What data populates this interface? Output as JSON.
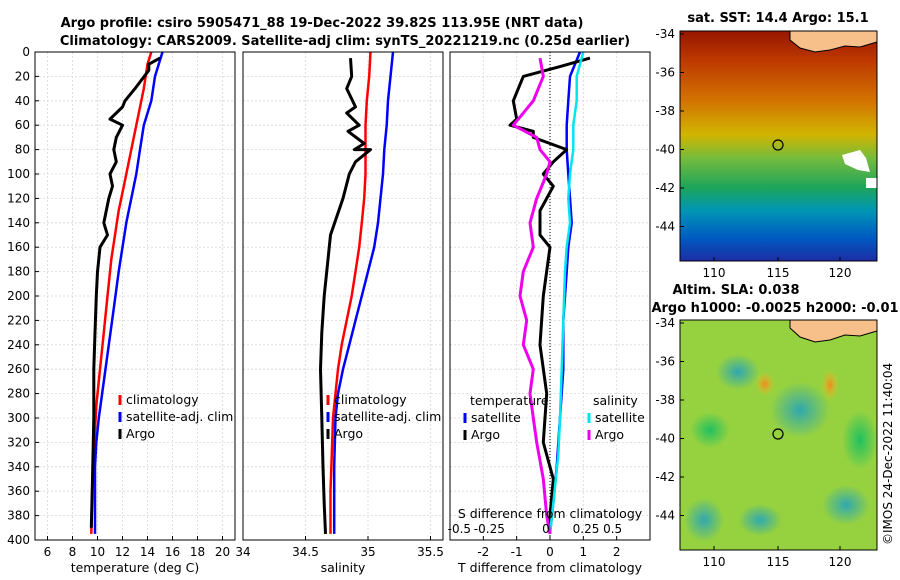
{
  "title_line1": "Argo profile: csiro 5905471_88 19-Dec-2022 39.82S 113.95E (NRT data)",
  "title_line2": "Climatology: CARS2009. Satellite-adj clim: synTS_20221219.nc (0.25d earlier)",
  "copyright": "©IMOS 24-Dec-2022 11:40:04",
  "colors": {
    "climatology": "#ff0000",
    "satellite": "#0000ff",
    "argo": "#000000",
    "sat_salinity": "#00e5ee",
    "argo_salinity": "#ee00ee"
  },
  "chart_data": [
    {
      "type": "line",
      "id": "temperature",
      "xlabel": "temperature (deg C)",
      "ylabel": "",
      "xlim": [
        5,
        21
      ],
      "ylim": [
        400,
        0
      ],
      "xticks": [
        "6",
        "8",
        "10",
        "12",
        "14",
        "16",
        "18",
        "20"
      ],
      "xtick_values": [
        6,
        8,
        10,
        12,
        14,
        16,
        18,
        20
      ],
      "yticks": [
        "0",
        "20",
        "40",
        "60",
        "80",
        "100",
        "120",
        "140",
        "160",
        "180",
        "200",
        "220",
        "240",
        "260",
        "280",
        "300",
        "320",
        "340",
        "360",
        "380",
        "400"
      ],
      "ytick_values": [
        0,
        20,
        40,
        60,
        80,
        100,
        120,
        140,
        160,
        180,
        200,
        220,
        240,
        260,
        280,
        300,
        320,
        340,
        360,
        380,
        400
      ],
      "legend": [
        "climatology",
        "satellite-adj. clim",
        "Argo"
      ],
      "series": [
        {
          "name": "climatology",
          "color": "#ff0000",
          "x": [
            14.3,
            14.0,
            13.7,
            13.3,
            12.9,
            12.5,
            12.1,
            11.7,
            11.4,
            11.1,
            10.8,
            10.5,
            10.2,
            9.9,
            9.8,
            9.7,
            9.6,
            9.55,
            9.5
          ],
          "y": [
            0,
            10,
            30,
            50,
            70,
            90,
            110,
            130,
            150,
            170,
            200,
            230,
            260,
            290,
            310,
            330,
            350,
            370,
            395
          ]
        },
        {
          "name": "satellite-adj. clim",
          "color": "#0000ff",
          "x": [
            15.2,
            14.6,
            14.3,
            13.7,
            13.4,
            13.1,
            12.7,
            12.3,
            12.0,
            11.7,
            11.3,
            10.9,
            10.5,
            10.1,
            9.9,
            9.8,
            9.8,
            9.8
          ],
          "y": [
            0,
            20,
            40,
            60,
            80,
            100,
            120,
            140,
            160,
            180,
            210,
            240,
            270,
            300,
            320,
            340,
            360,
            395
          ]
        },
        {
          "name": "Argo",
          "color": "#000000",
          "x": [
            15.0,
            14.1,
            14.1,
            13.0,
            12.2,
            12.0,
            11.5,
            11.0,
            12.0,
            11.5,
            11.3,
            11.5,
            11.0,
            11.2,
            10.9,
            10.5,
            10.8,
            10.2,
            10.0,
            9.9,
            9.8,
            9.7,
            9.7,
            9.6,
            9.5
          ],
          "y": [
            5,
            10,
            15,
            30,
            40,
            45,
            50,
            55,
            60,
            70,
            80,
            90,
            100,
            110,
            120,
            140,
            150,
            160,
            180,
            200,
            230,
            260,
            300,
            350,
            390
          ]
        }
      ]
    },
    {
      "type": "line",
      "id": "salinity",
      "xlabel": "salinity",
      "xlim": [
        34,
        35.6
      ],
      "ylim": [
        400,
        0
      ],
      "xticks": [
        "34",
        "34.5",
        "35",
        "35.5"
      ],
      "xtick_values": [
        34,
        34.5,
        35,
        35.5
      ],
      "legend": [
        "climatology",
        "satellite-adj. clim",
        "Argo"
      ],
      "series": [
        {
          "name": "climatology",
          "color": "#ff0000",
          "x": [
            35.02,
            35.01,
            34.99,
            34.98,
            34.98,
            34.98,
            34.97,
            34.95,
            34.93,
            34.9,
            34.87,
            34.83,
            34.79,
            34.76,
            34.74,
            34.72,
            34.71,
            34.7,
            34.7
          ],
          "y": [
            0,
            20,
            40,
            60,
            80,
            100,
            120,
            140,
            160,
            180,
            200,
            220,
            240,
            260,
            280,
            300,
            330,
            360,
            395
          ]
        },
        {
          "name": "satellite-adj. clim",
          "color": "#0000ff",
          "x": [
            35.2,
            35.18,
            35.16,
            35.15,
            35.13,
            35.12,
            35.1,
            35.08,
            35.05,
            35.0,
            34.95,
            34.9,
            34.85,
            34.8,
            34.76,
            34.74,
            34.73,
            34.73
          ],
          "y": [
            0,
            20,
            40,
            60,
            80,
            100,
            120,
            140,
            160,
            180,
            200,
            220,
            240,
            260,
            280,
            300,
            340,
            395
          ]
        },
        {
          "name": "Argo",
          "color": "#000000",
          "x": [
            34.86,
            34.87,
            34.83,
            34.9,
            34.83,
            34.93,
            34.84,
            34.97,
            34.89,
            35.02,
            34.9,
            34.85,
            34.8,
            34.7,
            34.68,
            34.65,
            34.63,
            34.62,
            34.63,
            34.64,
            34.65,
            34.66
          ],
          "y": [
            5,
            20,
            30,
            45,
            50,
            60,
            65,
            75,
            80,
            80,
            90,
            100,
            120,
            150,
            170,
            200,
            230,
            260,
            300,
            340,
            370,
            395
          ]
        }
      ]
    },
    {
      "type": "line",
      "id": "difference",
      "xlabel": "T difference from climatology",
      "top_xlabel": "S difference from climatology",
      "xlim": [
        -3,
        3
      ],
      "ylim": [
        400,
        0
      ],
      "xticks": [
        "-2",
        "-1",
        "0",
        "1",
        "2"
      ],
      "xtick_values": [
        -2,
        -1,
        0,
        1,
        2
      ],
      "top_xticks": [
        "-0.5",
        "-0.25",
        "0",
        "0.25",
        "0.5"
      ],
      "legend_temperature_title": "temperature",
      "legend_salinity_title": "salinity",
      "legend_temperature": [
        "satellite",
        "Argo"
      ],
      "legend_salinity": [
        "satellite",
        "Argo"
      ],
      "series": [
        {
          "name": "temperature satellite",
          "color": "#0000ff",
          "x": [
            0.9,
            0.6,
            0.55,
            0.5,
            0.5,
            0.55,
            0.6,
            0.65,
            0.55,
            0.5,
            0.45,
            0.4,
            0.4,
            0.3,
            0.2,
            0.1,
            0.0
          ],
          "y": [
            0,
            20,
            40,
            60,
            80,
            100,
            120,
            140,
            160,
            180,
            200,
            220,
            260,
            300,
            340,
            370,
            395
          ]
        },
        {
          "name": "temperature Argo",
          "color": "#000000",
          "x": [
            1.2,
            0.3,
            -0.8,
            -1.1,
            -1.0,
            -1.2,
            -0.5,
            -0.5,
            0.5,
            0.1,
            -0.2,
            0.1,
            -0.1,
            -0.3,
            -0.3,
            0.0,
            -0.2,
            -0.3,
            -0.1,
            -0.2,
            0.1,
            0.0,
            0.0
          ],
          "y": [
            5,
            12,
            20,
            40,
            55,
            60,
            65,
            70,
            80,
            90,
            100,
            110,
            120,
            130,
            150,
            160,
            200,
            240,
            280,
            320,
            350,
            380,
            395
          ]
        },
        {
          "name": "salinity satellite",
          "color": "#00e5ee",
          "x": [
            1.0,
            0.8,
            0.8,
            0.7,
            0.7,
            0.6,
            0.55,
            0.6,
            0.5,
            0.45,
            0.4,
            0.35,
            0.3,
            0.25,
            0.1,
            0.0
          ],
          "y": [
            0,
            20,
            40,
            60,
            80,
            100,
            120,
            140,
            160,
            180,
            220,
            260,
            300,
            330,
            370,
            395
          ]
        },
        {
          "name": "salinity Argo",
          "color": "#ee00ee",
          "x": [
            -0.3,
            -0.2,
            -0.5,
            -1.1,
            -0.4,
            -0.3,
            0.0,
            -0.1,
            -0.4,
            -0.6,
            -0.5,
            -0.8,
            -0.9,
            -0.7,
            -0.8,
            -0.5,
            -0.6,
            -0.5,
            -0.4,
            -0.2,
            -0.1,
            0.0
          ],
          "y": [
            5,
            20,
            40,
            60,
            70,
            80,
            90,
            100,
            120,
            140,
            160,
            180,
            200,
            220,
            240,
            260,
            280,
            300,
            320,
            350,
            380,
            395
          ]
        }
      ]
    }
  ],
  "maps": [
    {
      "title": "sat. SST: 14.4 Argo: 15.1",
      "xticks": [
        "110",
        "115",
        "120"
      ],
      "yticks": [
        "-34",
        "-36",
        "-38",
        "-40",
        "-42",
        "-44"
      ]
    },
    {
      "title_line1": "Altim. SLA: 0.038",
      "title_line2": "Argo h1000: -0.0025 h2000: -0.01",
      "xticks": [
        "110",
        "115",
        "120"
      ],
      "yticks": [
        "-34",
        "-36",
        "-38",
        "-40",
        "-42",
        "-44"
      ]
    }
  ]
}
